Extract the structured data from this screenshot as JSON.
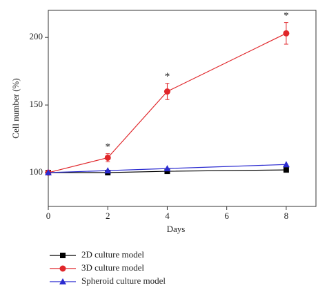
{
  "chart_data": {
    "type": "line",
    "x_label": "Days",
    "y_label": "Cell number (%)",
    "x": [
      0,
      2,
      4,
      8
    ],
    "series": [
      {
        "name": "2D culture model",
        "color": "#000000",
        "marker": "square",
        "values": [
          100,
          100,
          101,
          102
        ]
      },
      {
        "name": "3D culture model",
        "color": "#e0262a",
        "marker": "circle",
        "values": [
          100,
          111,
          160,
          203
        ],
        "errors": [
          0,
          3,
          6,
          8
        ]
      },
      {
        "name": "Spheroid culture model",
        "color": "#2b2bd0",
        "marker": "triangle",
        "values": [
          100,
          101.5,
          103,
          106
        ]
      }
    ],
    "annotations": [
      {
        "text": "*",
        "series": 1,
        "point": 1
      },
      {
        "text": "*",
        "series": 1,
        "point": 2
      },
      {
        "text": "*",
        "series": 1,
        "point": 3
      }
    ],
    "xlim": [
      0,
      9
    ],
    "ylim": [
      75,
      220
    ],
    "xticks": [
      0,
      2,
      4,
      6,
      8
    ],
    "yticks": [
      100,
      150,
      200
    ],
    "legend": "bottom"
  }
}
